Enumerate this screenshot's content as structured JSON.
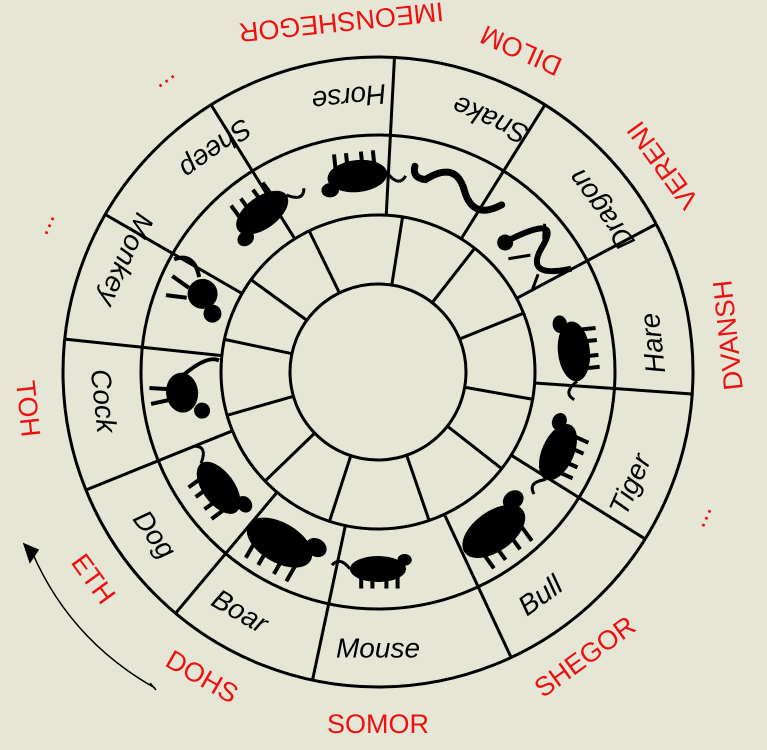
{
  "colors": {
    "background": "#e6e6d6",
    "ink": "#000000",
    "accent": "#ee1111"
  },
  "animals": [
    {
      "label": "Mouse",
      "icon": "mouse-icon"
    },
    {
      "label": "Bull",
      "icon": "bull-icon"
    },
    {
      "label": "Tiger",
      "icon": "tiger-icon"
    },
    {
      "label": "Hare",
      "icon": "hare-icon"
    },
    {
      "label": "Dragon",
      "icon": "dragon-icon"
    },
    {
      "label": "Snake",
      "icon": "snake-icon"
    },
    {
      "label": "Horse",
      "icon": "horse-icon"
    },
    {
      "label": "Sheep",
      "icon": "sheep-icon"
    },
    {
      "label": "Monkey",
      "icon": "monkey-icon"
    },
    {
      "label": "Cock",
      "icon": "cock-icon"
    },
    {
      "label": "Dog",
      "icon": "dog-icon"
    },
    {
      "label": "Boar",
      "icon": "boar-icon"
    }
  ],
  "outer_labels": [
    {
      "text": "SOMOR"
    },
    {
      "text": "SHEGOR"
    },
    {
      "text": "..."
    },
    {
      "text": "DVANSH"
    },
    {
      "text": "VERENI"
    },
    {
      "text": "DILOM"
    },
    {
      "text": "IMEONSHEGOR"
    },
    {
      "text": "..."
    },
    {
      "text": "..."
    },
    {
      "text": "TOH"
    },
    {
      "text": "ETH"
    },
    {
      "text": "DOHS"
    }
  ],
  "direction_arrow": {
    "icon": "counterclockwise-arrow-icon"
  }
}
